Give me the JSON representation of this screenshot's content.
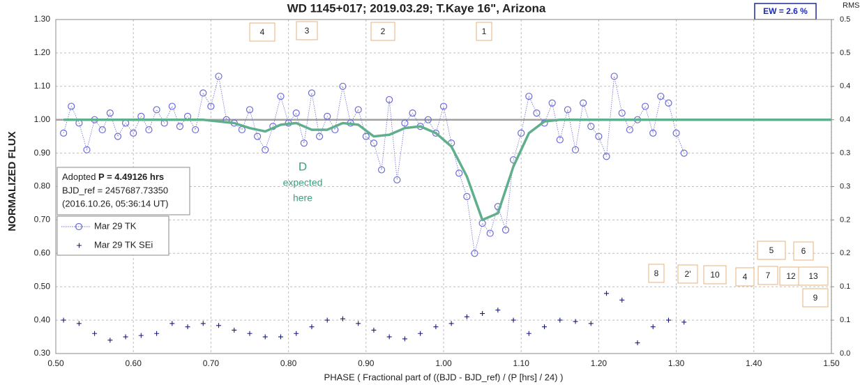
{
  "chart_data": {
    "type": "scatter",
    "title": "WD 1145+017; 2019.03.29; T.Kaye 16\",  Arizona",
    "ew_label": "EW =  2.6 %",
    "y2_title": "RMS i",
    "xlabel": "PHASE ( Fractional part of ((BJD - BJD_ref) / (P [hrs] / 24) )",
    "ylabel": "NORMALIZED FLUX",
    "info": {
      "prefix": "Adopted ",
      "period": "P = 4.49126 hrs",
      "bjd": "BJD_ref = 2457687.73350",
      "date": "(2016.10.26, 05:36:14 UT)"
    },
    "note": [
      "D",
      "expected",
      "here"
    ],
    "boxes": [
      "4",
      "3",
      "2",
      "1",
      "5",
      "6",
      "8",
      "2'",
      "10",
      "4",
      "7",
      "12",
      "13",
      "9"
    ],
    "xlim": [
      0.5,
      1.5
    ],
    "xticks": [
      {
        "value": 0.5,
        "label": "0.50"
      },
      {
        "value": 0.6,
        "label": "0.60"
      },
      {
        "value": 0.7,
        "label": "0.70"
      },
      {
        "value": 0.8,
        "label": "0.80"
      },
      {
        "value": 0.9,
        "label": "0.90"
      },
      {
        "value": 1.0,
        "label": "1.00"
      },
      {
        "value": 1.1,
        "label": "1.10"
      },
      {
        "value": 1.2,
        "label": "1.20"
      },
      {
        "value": 1.3,
        "label": "1.30"
      },
      {
        "value": 1.4,
        "label": "1.40"
      },
      {
        "value": 1.5,
        "label": "1.50"
      }
    ],
    "ylim": [
      0.3,
      1.3
    ],
    "yticks": [
      {
        "value": 0.3,
        "label": "0.30"
      },
      {
        "value": 0.4,
        "label": "0.40"
      },
      {
        "value": 0.5,
        "label": "0.50"
      },
      {
        "value": 0.6,
        "label": "0.60"
      },
      {
        "value": 0.7,
        "label": "0.70"
      },
      {
        "value": 0.8,
        "label": "0.80"
      },
      {
        "value": 0.9,
        "label": "0.90"
      },
      {
        "value": 1.0,
        "label": "1.00"
      },
      {
        "value": 1.1,
        "label": "1.10"
      },
      {
        "value": 1.2,
        "label": "1.20"
      },
      {
        "value": 1.3,
        "label": "1.30"
      }
    ],
    "y2lim": [
      0,
      0.5
    ],
    "y2ticks": [
      {
        "value": 0.5,
        "label": "0.5"
      },
      {
        "value": 0.45,
        "label": "0.5"
      },
      {
        "value": 0.4,
        "label": "0.4"
      },
      {
        "value": 0.35,
        "label": "0.4"
      },
      {
        "value": 0.3,
        "label": "0.3"
      },
      {
        "value": 0.25,
        "label": "0.3"
      },
      {
        "value": 0.2,
        "label": "0.2"
      },
      {
        "value": 0.15,
        "label": "0.2"
      },
      {
        "value": 0.1,
        "label": "0.1"
      },
      {
        "value": 0.05,
        "label": "0.1"
      },
      {
        "value": 0,
        "label": "0.0"
      }
    ],
    "grid": true,
    "reference": {
      "value": 1.0,
      "color": "#a0a0a0"
    },
    "model": {
      "color": "#5fae8c",
      "x": [
        0.51,
        0.53,
        0.55,
        0.57,
        0.59,
        0.61,
        0.63,
        0.65,
        0.67,
        0.69,
        0.71,
        0.73,
        0.75,
        0.77,
        0.79,
        0.81,
        0.83,
        0.85,
        0.87,
        0.89,
        0.91,
        0.93,
        0.95,
        0.97,
        0.99,
        1.01,
        1.03,
        1.05,
        1.07,
        1.09,
        1.11,
        1.13,
        1.15,
        1.17,
        1.19,
        1.21,
        1.23,
        1.25,
        1.27,
        1.29,
        1.31,
        1.4,
        1.5
      ],
      "values": [
        1.0,
        1.0,
        1.0,
        1.0,
        1.0,
        1.0,
        1.0,
        1.0,
        1.0,
        1.0,
        0.995,
        0.99,
        0.975,
        0.965,
        0.985,
        0.99,
        0.97,
        0.97,
        0.99,
        0.985,
        0.95,
        0.955,
        0.975,
        0.98,
        0.96,
        0.92,
        0.83,
        0.7,
        0.72,
        0.86,
        0.96,
        0.995,
        1.0,
        1.0,
        1.0,
        1.0,
        1.0,
        1.0,
        1.0,
        1.0,
        1.0,
        1.0,
        1.0
      ]
    },
    "series": [
      {
        "name": "Mar 29 TK",
        "color": "#6b6bd6",
        "marker": "circle",
        "x": [
          0.51,
          0.52,
          0.53,
          0.54,
          0.55,
          0.56,
          0.57,
          0.58,
          0.59,
          0.6,
          0.61,
          0.62,
          0.63,
          0.64,
          0.65,
          0.66,
          0.67,
          0.68,
          0.69,
          0.7,
          0.71,
          0.72,
          0.73,
          0.74,
          0.75,
          0.76,
          0.77,
          0.78,
          0.79,
          0.8,
          0.81,
          0.82,
          0.83,
          0.84,
          0.85,
          0.86,
          0.87,
          0.88,
          0.89,
          0.9,
          0.91,
          0.92,
          0.93,
          0.94,
          0.95,
          0.96,
          0.97,
          0.98,
          0.99,
          1.0,
          1.01,
          1.02,
          1.03,
          1.04,
          1.05,
          1.06,
          1.07,
          1.08,
          1.09,
          1.1,
          1.11,
          1.12,
          1.13,
          1.14,
          1.15,
          1.16,
          1.17,
          1.18,
          1.19,
          1.2,
          1.21,
          1.22,
          1.23,
          1.24,
          1.25,
          1.26,
          1.27,
          1.28,
          1.29,
          1.3,
          1.31
        ],
        "values": [
          0.96,
          1.04,
          0.99,
          0.91,
          1.0,
          0.97,
          1.02,
          0.95,
          0.99,
          0.96,
          1.01,
          0.97,
          1.03,
          0.99,
          1.04,
          0.98,
          1.01,
          0.97,
          1.08,
          1.04,
          1.13,
          1.0,
          0.99,
          0.97,
          1.03,
          0.95,
          0.91,
          0.98,
          1.07,
          0.99,
          1.02,
          0.93,
          1.08,
          0.95,
          1.01,
          0.97,
          1.1,
          0.99,
          1.03,
          0.95,
          0.93,
          0.85,
          1.06,
          0.82,
          0.99,
          1.02,
          0.98,
          1.0,
          0.96,
          1.04,
          0.93,
          0.84,
          0.77,
          0.6,
          0.69,
          0.66,
          0.74,
          0.67,
          0.88,
          0.96,
          1.07,
          1.02,
          0.99,
          1.05,
          0.94,
          1.03,
          0.91,
          1.05,
          0.98,
          0.95,
          0.89,
          1.13,
          1.02,
          0.97,
          1.0,
          1.04,
          0.96,
          1.07,
          1.05,
          0.96,
          0.9
        ]
      },
      {
        "name": "Mar 29 TK SEi",
        "color": "#1a1a7a",
        "marker": "plus",
        "axis": "y2",
        "x": [
          0.51,
          0.53,
          0.55,
          0.57,
          0.59,
          0.61,
          0.63,
          0.65,
          0.67,
          0.69,
          0.71,
          0.73,
          0.75,
          0.77,
          0.79,
          0.81,
          0.83,
          0.85,
          0.87,
          0.89,
          0.91,
          0.93,
          0.95,
          0.97,
          0.99,
          1.01,
          1.03,
          1.05,
          1.07,
          1.09,
          1.11,
          1.13,
          1.15,
          1.17,
          1.19,
          1.21,
          1.23,
          1.25,
          1.27,
          1.29,
          1.31
        ],
        "values": [
          0.05,
          0.045,
          0.03,
          0.02,
          0.025,
          0.027,
          0.03,
          0.045,
          0.04,
          0.045,
          0.042,
          0.035,
          0.03,
          0.025,
          0.025,
          0.03,
          0.04,
          0.05,
          0.052,
          0.045,
          0.035,
          0.025,
          0.022,
          0.03,
          0.04,
          0.045,
          0.055,
          0.06,
          0.065,
          0.05,
          0.03,
          0.04,
          0.05,
          0.048,
          0.045,
          0.09,
          0.08,
          0.016,
          0.04,
          0.05,
          0.047
        ]
      }
    ]
  }
}
